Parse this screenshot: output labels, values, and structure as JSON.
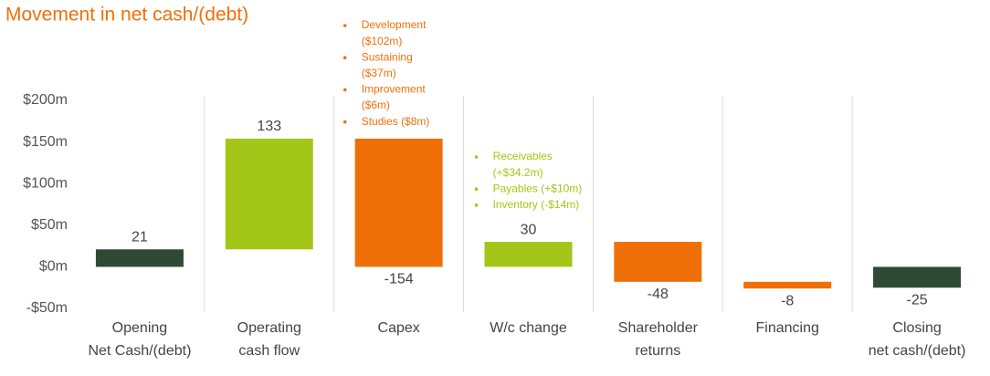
{
  "chart_data": {
    "type": "waterfall",
    "title": "Movement in net cash/(debt)",
    "categories": [
      [
        "Opening",
        "Net Cash/(debt)"
      ],
      [
        "Operating",
        "cash flow"
      ],
      [
        "Capex"
      ],
      [
        "W/c change"
      ],
      [
        "Shareholder",
        "returns"
      ],
      [
        "Financing"
      ],
      [
        "Closing",
        "net cash/(debt)"
      ]
    ],
    "values": [
      21,
      133,
      -154,
      30,
      -48,
      -8,
      -25
    ],
    "is_total": [
      true,
      false,
      false,
      false,
      false,
      false,
      true
    ],
    "colors": [
      "#2e4a34",
      "#a4c618",
      "#ef7008",
      "#a4c618",
      "#ef7008",
      "#ef7008",
      "#2e4a34"
    ],
    "ylim": [
      -50,
      200
    ],
    "yticks": [
      {
        "value": -50,
        "label": "-$50m"
      },
      {
        "value": 0,
        "label": "$0m"
      },
      {
        "value": 50,
        "label": "$50m"
      },
      {
        "value": 100,
        "label": "$100m"
      },
      {
        "value": 150,
        "label": "$150m"
      },
      {
        "value": 200,
        "label": "$200m"
      }
    ],
    "annotations": [
      {
        "category": 2,
        "color": "#ef7008",
        "items": [
          [
            "Development",
            "($102m)"
          ],
          [
            "Sustaining",
            "($37m)"
          ],
          [
            "Improvement",
            "($6m)"
          ],
          [
            "Studies ($8m)"
          ]
        ]
      },
      {
        "category": 3,
        "color": "#a4c618",
        "items": [
          [
            "Receivables",
            "(+$34.2m)"
          ],
          [
            "Payables (+$10m)"
          ],
          [
            "Inventory (-$14m)"
          ]
        ]
      }
    ]
  }
}
